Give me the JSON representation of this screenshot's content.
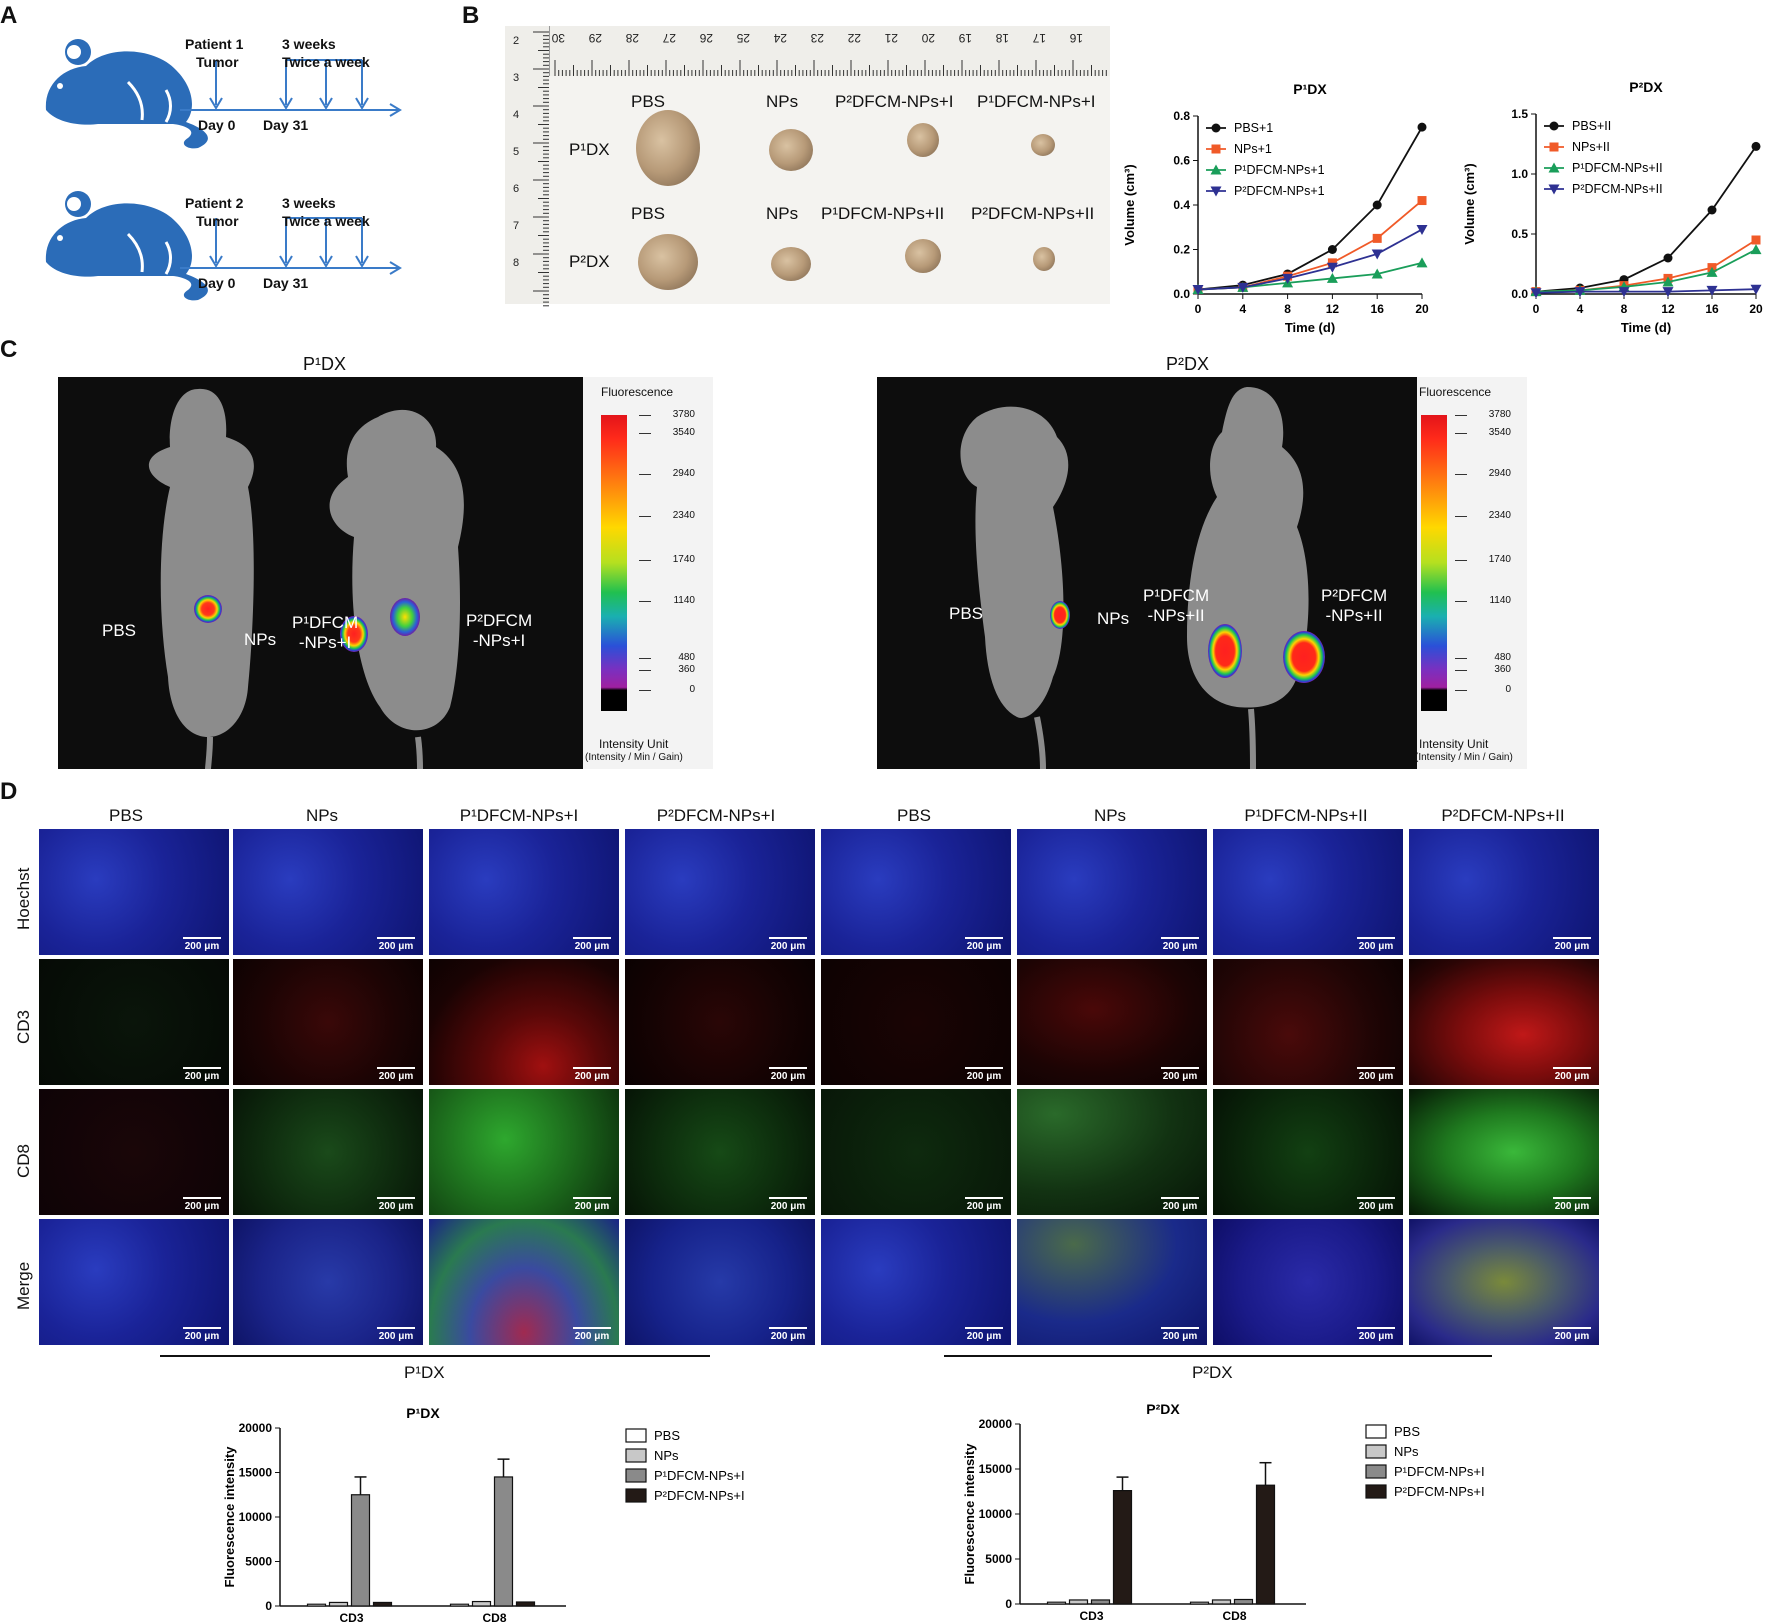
{
  "panels": {
    "A": {
      "letter": "A",
      "rows": [
        {
          "patient": "Patient 1",
          "tumor": "Tumor",
          "duration": "3 weeks",
          "freq": "Twice a week",
          "day0": "Day 0",
          "day31": "Day 31"
        },
        {
          "patient": "Patient 2",
          "tumor": "Tumor",
          "duration": "3 weeks",
          "freq": "Twice a week",
          "day0": "Day 0",
          "day31": "Day 31"
        }
      ]
    },
    "B": {
      "letter": "B",
      "photo": {
        "ruler_numbers": [
          "30",
          "29",
          "28",
          "27",
          "26",
          "25",
          "24",
          "23",
          "22",
          "21",
          "20",
          "19",
          "18",
          "17",
          "16"
        ],
        "ruler_left_numbers": [
          "2",
          "3",
          "4",
          "5",
          "6",
          "7",
          "8"
        ],
        "row1_label": "P¹DX",
        "row2_label": "P²DX",
        "row1_cols": [
          "PBS",
          "NPs",
          "P²DFCM-NPs+I",
          "P¹DFCM-NPs+I"
        ],
        "row2_cols": [
          "PBS",
          "NPs",
          "P¹DFCM-NPs+II",
          "P²DFCM-NPs+II"
        ]
      }
    },
    "C": {
      "letter": "C",
      "left_title": "P¹DX",
      "right_title": "P²DX",
      "left_labels": [
        "PBS",
        "NPs",
        "P¹DFCM\n-NPs+I",
        "P²DFCM\n-NPs+I"
      ],
      "right_labels": [
        "PBS",
        "NPs",
        "P¹DFCM\n-NPs+II",
        "P²DFCM\n-NPs+II"
      ],
      "scale_title": "Fluorescence",
      "scale_ticks": [
        "3780",
        "3540",
        "2940",
        "2340",
        "1740",
        "1140",
        "480",
        "360",
        "0"
      ],
      "scale_unit": "Intensity Unit",
      "scale_unit_sub": "(Intensity / Min / Gain)"
    },
    "D": {
      "letter": "D",
      "col_headers": [
        "PBS",
        "NPs",
        "P¹DFCM-NPs+I",
        "P²DFCM-NPs+I",
        "PBS",
        "NPs",
        "P¹DFCM-NPs+II",
        "P²DFCM-NPs+II"
      ],
      "row_headers": [
        "Hoechst",
        "CD3",
        "CD8",
        "Merge"
      ],
      "scale_label": "200 μm",
      "group_labels": [
        "P¹DX",
        "P²DX"
      ]
    }
  },
  "chart_data": [
    {
      "type": "line",
      "title": "P¹DX",
      "xlabel": "Time (d)",
      "ylabel": "Volume (cm³)",
      "x": [
        0,
        4,
        8,
        12,
        16,
        20
      ],
      "xlim": [
        0,
        20
      ],
      "ylim": [
        0,
        0.8
      ],
      "yticks": [
        0.0,
        0.2,
        0.4,
        0.6,
        0.8
      ],
      "series": [
        {
          "name": "PBS+1",
          "color": "#111111",
          "marker": "circle",
          "values": [
            0.02,
            0.04,
            0.09,
            0.2,
            0.4,
            0.75
          ]
        },
        {
          "name": "NPs+1",
          "color": "#f05a28",
          "marker": "square",
          "values": [
            0.02,
            0.03,
            0.08,
            0.14,
            0.25,
            0.42
          ]
        },
        {
          "name": "P¹DFCM-NPs+1",
          "color": "#1a9e5a",
          "marker": "triangle-up",
          "values": [
            0.02,
            0.03,
            0.05,
            0.07,
            0.09,
            0.14
          ]
        },
        {
          "name": "P²DFCM-NPs+1",
          "color": "#2e3192",
          "marker": "triangle-down",
          "values": [
            0.02,
            0.03,
            0.07,
            0.12,
            0.18,
            0.29
          ]
        }
      ],
      "legend": "top-left"
    },
    {
      "type": "line",
      "title": "P²DX",
      "xlabel": "Time (d)",
      "ylabel": "Volume (cm³)",
      "x": [
        0,
        4,
        8,
        12,
        16,
        20
      ],
      "xlim": [
        0,
        20
      ],
      "ylim": [
        0,
        1.5
      ],
      "yticks": [
        0.0,
        0.5,
        1.0,
        1.5
      ],
      "series": [
        {
          "name": "PBS+II",
          "color": "#111111",
          "marker": "circle",
          "values": [
            0.02,
            0.05,
            0.12,
            0.3,
            0.7,
            1.23
          ]
        },
        {
          "name": "NPs+II",
          "color": "#f05a28",
          "marker": "square",
          "values": [
            0.02,
            0.03,
            0.07,
            0.13,
            0.22,
            0.45
          ]
        },
        {
          "name": "P¹DFCM-NPs+II",
          "color": "#1a9e5a",
          "marker": "triangle-up",
          "values": [
            0.02,
            0.03,
            0.06,
            0.1,
            0.18,
            0.37
          ]
        },
        {
          "name": "P²DFCM-NPs+II",
          "color": "#2e3192",
          "marker": "triangle-down",
          "values": [
            0.01,
            0.02,
            0.02,
            0.02,
            0.03,
            0.04
          ]
        }
      ],
      "legend": "top-left"
    },
    {
      "type": "bar",
      "title": "P¹DX",
      "ylabel": "Fluorescence intensity",
      "categories": [
        "CD3",
        "CD8"
      ],
      "ylim": [
        0,
        20000
      ],
      "yticks": [
        0,
        5000,
        10000,
        15000,
        20000
      ],
      "series": [
        {
          "name": "PBS",
          "fill": "#ffffff",
          "values": [
            200,
            200
          ],
          "errors": [
            0,
            0
          ]
        },
        {
          "name": "NPs",
          "fill": "#c8c8c8",
          "values": [
            400,
            500
          ],
          "errors": [
            0,
            0
          ]
        },
        {
          "name": "P¹DFCM-NPs+I",
          "fill": "#8a8a8a",
          "values": [
            12500,
            14500
          ],
          "errors": [
            2000,
            2000
          ]
        },
        {
          "name": "P²DFCM-NPs+I",
          "fill": "#231a16",
          "values": [
            400,
            450
          ],
          "errors": [
            0,
            0
          ]
        }
      ],
      "legend": "right"
    },
    {
      "type": "bar",
      "title": "P²DX",
      "ylabel": "Fluorescence intensity",
      "categories": [
        "CD3",
        "CD8"
      ],
      "ylim": [
        0,
        20000
      ],
      "yticks": [
        0,
        5000,
        10000,
        15000,
        20000
      ],
      "series": [
        {
          "name": "PBS",
          "fill": "#ffffff",
          "values": [
            200,
            200
          ],
          "errors": [
            0,
            0
          ]
        },
        {
          "name": "NPs",
          "fill": "#c8c8c8",
          "values": [
            450,
            450
          ],
          "errors": [
            0,
            0
          ]
        },
        {
          "name": "P¹DFCM-NPs+I",
          "fill": "#8a8a8a",
          "values": [
            450,
            500
          ],
          "errors": [
            0,
            0
          ]
        },
        {
          "name": "P²DFCM-NPs+I",
          "fill": "#231a16",
          "values": [
            12600,
            13200
          ],
          "errors": [
            1500,
            2500
          ]
        }
      ],
      "legend": "right"
    }
  ]
}
